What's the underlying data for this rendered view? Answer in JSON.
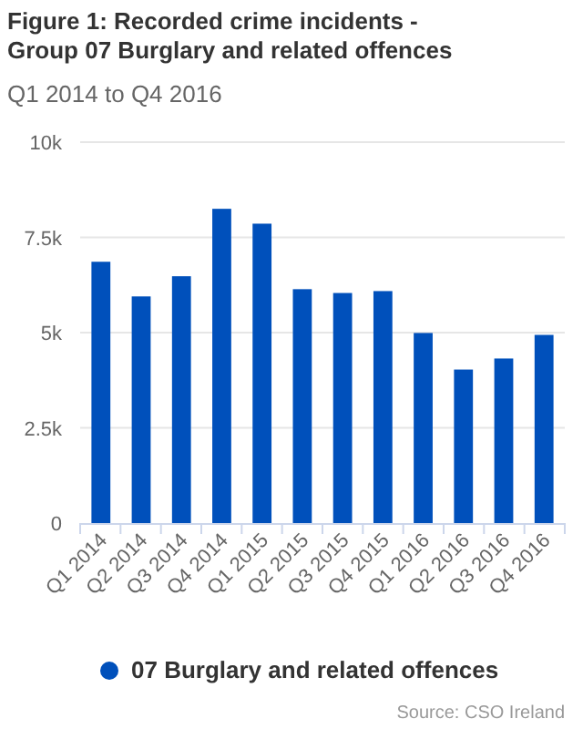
{
  "chart_data": {
    "type": "bar",
    "title": "Figure 1: Recorded crime incidents - Group 07 Burglary and related offences",
    "subtitle": "Q1 2014 to Q4 2016",
    "categories": [
      "Q1 2014",
      "Q2 2014",
      "Q3 2014",
      "Q4 2014",
      "Q1 2015",
      "Q2 2015",
      "Q3 2015",
      "Q4 2015",
      "Q1 2016",
      "Q2 2016",
      "Q3 2016",
      "Q4 2016"
    ],
    "series": [
      {
        "name": "07 Burglary and related offences",
        "color": "#0050bb",
        "values": [
          6860,
          5950,
          6480,
          8250,
          7860,
          6140,
          6040,
          6090,
          4990,
          4030,
          4320,
          4940
        ]
      }
    ],
    "ylim": [
      0,
      10000
    ],
    "yticks": [
      {
        "value": 0,
        "label": "0"
      },
      {
        "value": 2500,
        "label": "2.5k"
      },
      {
        "value": 5000,
        "label": "5k"
      },
      {
        "value": 7500,
        "label": "7.5k"
      },
      {
        "value": 10000,
        "label": "10k"
      }
    ],
    "grid": "y",
    "legend": "bottom",
    "annotations": [
      "Source: CSO Ireland"
    ]
  }
}
